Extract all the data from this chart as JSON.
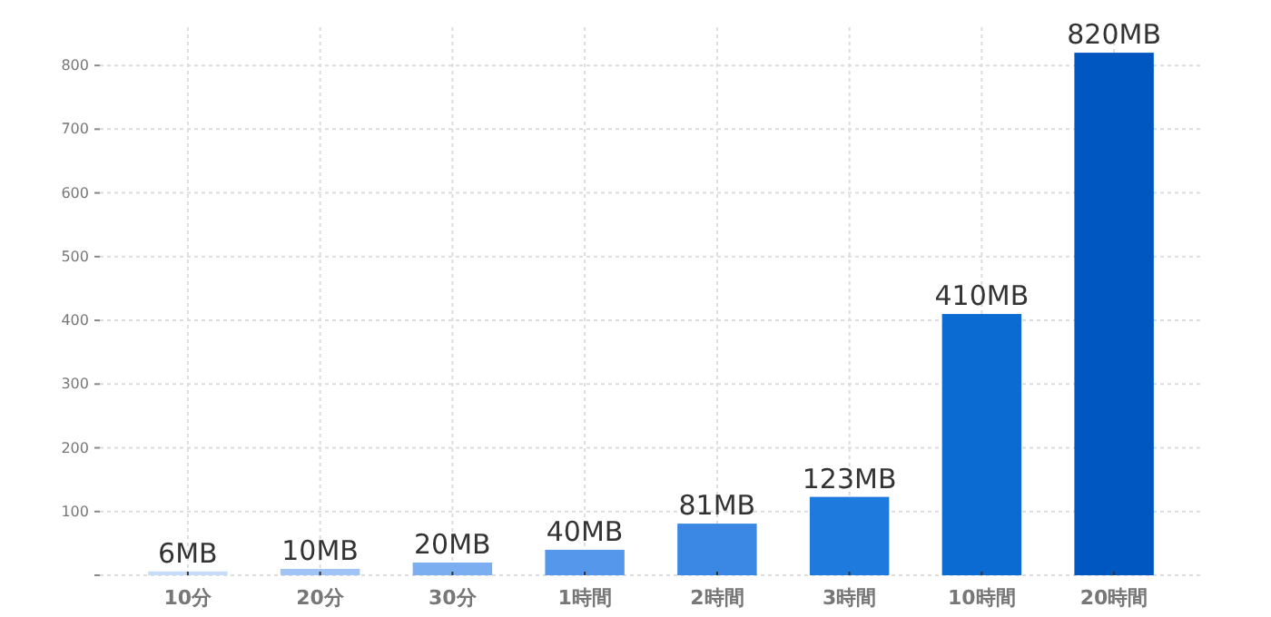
{
  "chart_data": {
    "type": "bar",
    "categories": [
      "10分",
      "20分",
      "30分",
      "1時間",
      "2時間",
      "3時間",
      "10時間",
      "20時間"
    ],
    "values": [
      6,
      10,
      20,
      40,
      81,
      123,
      410,
      820
    ],
    "colors": [
      "#c6dcf8",
      "#9fc4f5",
      "#7aaef0",
      "#5598eb",
      "#3a88e4",
      "#1f7ade",
      "#0c6bd3",
      "#0057c2"
    ],
    "value_labels": [
      "6MB",
      "10MB",
      "20MB",
      "40MB",
      "81MB",
      "123MB",
      "410MB",
      "820MB"
    ],
    "ylim": [
      0,
      860
    ],
    "yticks": [
      {
        "value": 0,
        "label": null
      },
      100,
      200,
      300,
      400,
      500,
      600,
      700,
      800
    ],
    "grid": true
  }
}
